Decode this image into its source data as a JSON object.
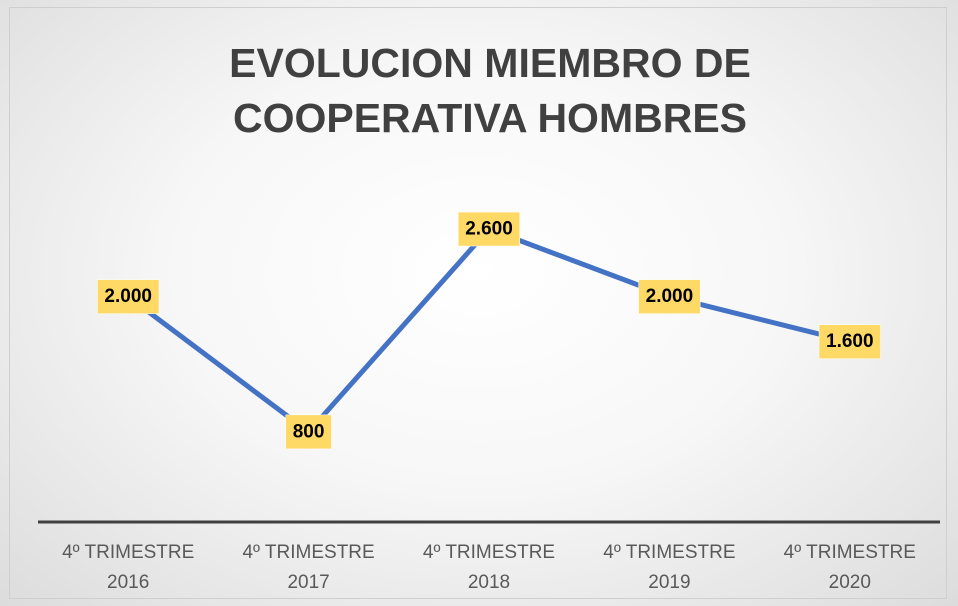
{
  "chart_data": {
    "type": "line",
    "title": "EVOLUCION MIEMBRO DE COOPERATIVA HOMBRES",
    "categories": [
      "4º TRIMESTRE 2016",
      "4º TRIMESTRE 2017",
      "4º TRIMESTRE 2018",
      "4º TRIMESTRE 2019",
      "4º TRIMESTRE 2020"
    ],
    "values": [
      2000,
      800,
      2600,
      2000,
      1600
    ],
    "value_labels": [
      "2.000",
      "800",
      "2.600",
      "2.000",
      "1.600"
    ],
    "color": "#4472c4",
    "label_color": "#ffd966",
    "ylim": [
      0,
      3000
    ]
  }
}
